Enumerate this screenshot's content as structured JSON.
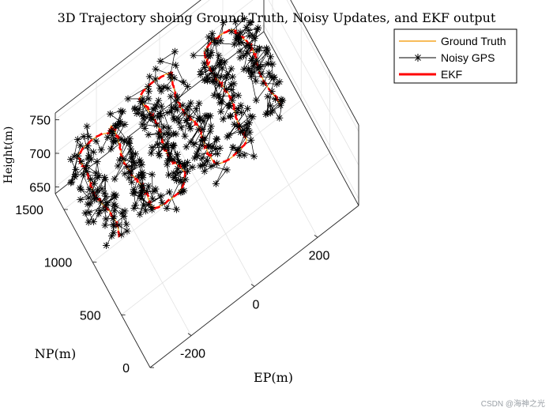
{
  "chart_data": {
    "type": "line3d",
    "title": "3D Trajectory shoing Ground Truth, Noisy Updates, and EKF output",
    "xlabel": "EP(m)",
    "ylabel": "NP(m)",
    "zlabel": "Height(m)",
    "xlim": [
      -330,
      330
    ],
    "ylim": [
      0,
      1650
    ],
    "zlim": [
      640,
      760
    ],
    "xticks": [
      "-200",
      "0",
      "200"
    ],
    "yticks": [
      "0",
      "500",
      "1000",
      "1500"
    ],
    "zticks": [
      "650",
      "700",
      "750"
    ],
    "xtick_values": [
      -200,
      0,
      200
    ],
    "ytick_values": [
      0,
      500,
      1000,
      1500
    ],
    "ztick_values": [
      650,
      700,
      750
    ],
    "grid": true,
    "legend_position": "top-right",
    "pattern": {
      "x_lanes": [
        -280,
        -180,
        -80,
        20,
        120,
        220
      ],
      "y_range": [
        800,
        1530
      ],
      "z_values": [
        692,
        700,
        708
      ],
      "note_only_visual": false
    },
    "series": [
      {
        "name": "Ground Truth",
        "color": "#f5a623",
        "style": "line"
      },
      {
        "name": "Noisy GPS",
        "color": "#000000",
        "style": "line-asterisk"
      },
      {
        "name": "EKF",
        "color": "#ff0000",
        "style": "dashed-thick"
      }
    ]
  },
  "watermark": "CSDN @海神之光"
}
